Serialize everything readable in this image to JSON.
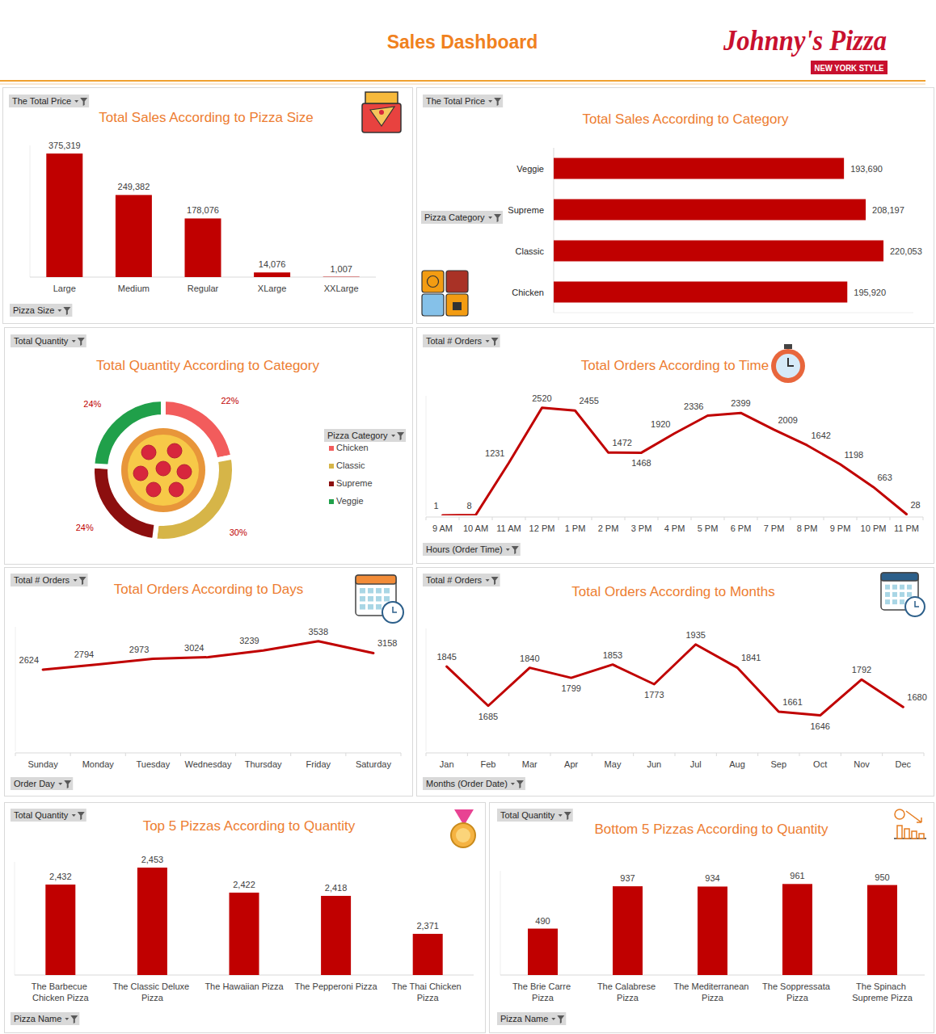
{
  "header": {
    "title": "Sales Dashboard",
    "logo": "Johnny's Pizza",
    "logo_tagline": "NEW YORK STYLE"
  },
  "chart_data": [
    {
      "type": "bar",
      "title": "Total Sales According to Pizza Size",
      "ylabel": "The Total Price",
      "xlabel": "Pizza Size",
      "categories": [
        "Large",
        "Medium",
        "Regular",
        "XLarge",
        "XXLarge"
      ],
      "values": [
        375319,
        249382,
        178076,
        14076,
        1007
      ],
      "value_labels": [
        "375,319",
        "249,382",
        "178,076",
        "14,076",
        "1,007"
      ],
      "color": "#c00000",
      "ylim": [
        0,
        400000
      ],
      "data_labels": true,
      "tick_labels": "x",
      "grid": false
    },
    {
      "type": "bar",
      "orientation": "horizontal",
      "title": "Total Sales According to Category",
      "xlabel": "The Total Price",
      "ylabel": "Pizza Category",
      "categories": [
        "Veggie",
        "Supreme",
        "Classic",
        "Chicken"
      ],
      "values": [
        193690,
        208197,
        220053,
        195920
      ],
      "value_labels": [
        "193,690",
        "208,197",
        "220,053",
        "195,920"
      ],
      "color": "#c00000",
      "xlim": [
        0,
        240000
      ],
      "data_labels": true,
      "tick_labels": "y",
      "grid": false
    },
    {
      "type": "donut",
      "title": "Total Quantity According to Category",
      "ylabel": "Total Quantity",
      "legend_title": "Pizza Category",
      "categories": [
        "Chicken",
        "Classic",
        "Supreme",
        "Veggie"
      ],
      "values": [
        22,
        30,
        24,
        24
      ],
      "value_labels": [
        "22%",
        "30%",
        "24%",
        "24%"
      ],
      "colors": [
        "#f25c5c",
        "#d6b548",
        "#8c0f0f",
        "#20a04a"
      ],
      "legend": "right",
      "data_labels": true
    },
    {
      "type": "line",
      "title": "Total Orders According to Time",
      "ylabel": "Total # Orders",
      "xlabel": "Hours (Order Time)",
      "categories": [
        "9 AM",
        "10 AM",
        "11 AM",
        "12 PM",
        "1 PM",
        "2 PM",
        "3 PM",
        "4 PM",
        "5 PM",
        "6 PM",
        "7 PM",
        "8 PM",
        "9 PM",
        "10 PM",
        "11 PM"
      ],
      "values": [
        1,
        8,
        1231,
        2520,
        2455,
        1472,
        1468,
        1920,
        2336,
        2399,
        2009,
        1642,
        1198,
        663,
        28
      ],
      "color": "#c00000",
      "ylim": [
        0,
        2800
      ],
      "data_labels": true,
      "tick_labels": "x",
      "grid": false
    },
    {
      "type": "line",
      "title": "Total Orders According to Days",
      "ylabel": "Total # Orders",
      "xlabel": "Order Day",
      "categories": [
        "Sunday",
        "Monday",
        "Tuesday",
        "Wednesday",
        "Thursday",
        "Friday",
        "Saturday"
      ],
      "values": [
        2624,
        2794,
        2973,
        3024,
        3239,
        3538,
        3158
      ],
      "color": "#c00000",
      "ylim": [
        0,
        4000
      ],
      "data_labels": true,
      "tick_labels": "x",
      "grid": false
    },
    {
      "type": "line",
      "title": "Total Orders According to Months",
      "ylabel": "Total # Orders",
      "xlabel": "Months (Order Date)",
      "categories": [
        "Jan",
        "Feb",
        "Mar",
        "Apr",
        "May",
        "Jun",
        "Jul",
        "Aug",
        "Sep",
        "Oct",
        "Nov",
        "Dec"
      ],
      "values": [
        1845,
        1685,
        1840,
        1799,
        1853,
        1773,
        1935,
        1841,
        1661,
        1646,
        1792,
        1680
      ],
      "color": "#c00000",
      "ylim": [
        1500,
        2000
      ],
      "data_labels": true,
      "tick_labels": "x",
      "grid": false
    },
    {
      "type": "bar",
      "title": "Top 5 Pizzas According to Quantity",
      "ylabel": "Total Quantity",
      "xlabel": "Pizza Name",
      "categories": [
        "The Barbecue Chicken Pizza",
        "The Classic Deluxe Pizza",
        "The Hawaiian Pizza",
        "The Pepperoni Pizza",
        "The Thai Chicken Pizza"
      ],
      "values": [
        2432,
        2453,
        2422,
        2418,
        2371
      ],
      "value_labels": [
        "2,432",
        "2,453",
        "2,422",
        "2,418",
        "2,371"
      ],
      "color": "#c00000",
      "ylim": [
        2320,
        2460
      ],
      "data_labels": true,
      "tick_labels": "x",
      "grid": false
    },
    {
      "type": "bar",
      "title": "Bottom 5 Pizzas According to Quantity",
      "ylabel": "Total Quantity",
      "xlabel": "Pizza Name",
      "categories": [
        "The Brie Carre Pizza",
        "The Calabrese Pizza",
        "The Mediterranean Pizza",
        "The Soppressata Pizza",
        "The Spinach Supreme Pizza"
      ],
      "values": [
        490,
        937,
        934,
        961,
        950
      ],
      "color": "#c00000",
      "ylim": [
        0,
        1100
      ],
      "data_labels": true,
      "tick_labels": "x",
      "grid": false
    }
  ]
}
